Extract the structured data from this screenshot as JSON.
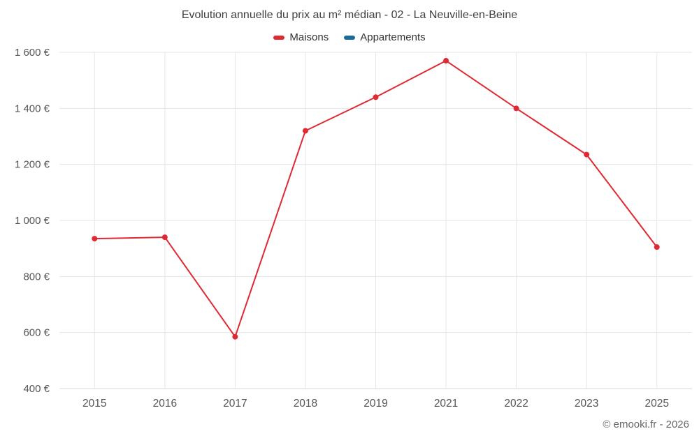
{
  "chart_data": {
    "type": "line",
    "title": "Evolution annuelle du prix au m² médian - 02 - La Neuville-en-Beine",
    "categories": [
      "2015",
      "2016",
      "2017",
      "2018",
      "2019",
      "2021",
      "2022",
      "2023",
      "2025"
    ],
    "series": [
      {
        "name": "Maisons",
        "color": "#e02a33",
        "values": [
          935,
          940,
          585,
          1320,
          1440,
          1570,
          1400,
          1235,
          905
        ]
      },
      {
        "name": "Appartements",
        "color": "#1b6d99",
        "values": []
      }
    ],
    "ylim": [
      400,
      1600
    ],
    "yticks": [
      {
        "value": 400,
        "label": "400 €"
      },
      {
        "value": 600,
        "label": "600 €"
      },
      {
        "value": 800,
        "label": "800 €"
      },
      {
        "value": 1000,
        "label": "1 000 €"
      },
      {
        "value": 1200,
        "label": "1 200 €"
      },
      {
        "value": 1400,
        "label": "1 400 €"
      },
      {
        "value": 1600,
        "label": "1 600 €"
      }
    ],
    "grid": true,
    "legend_position": "top",
    "footer": "© emooki.fr - 2026",
    "colors": {
      "gridline": "#e6e6e6",
      "axis_line": "#d8d8d8",
      "tick_label": "#555555"
    }
  }
}
